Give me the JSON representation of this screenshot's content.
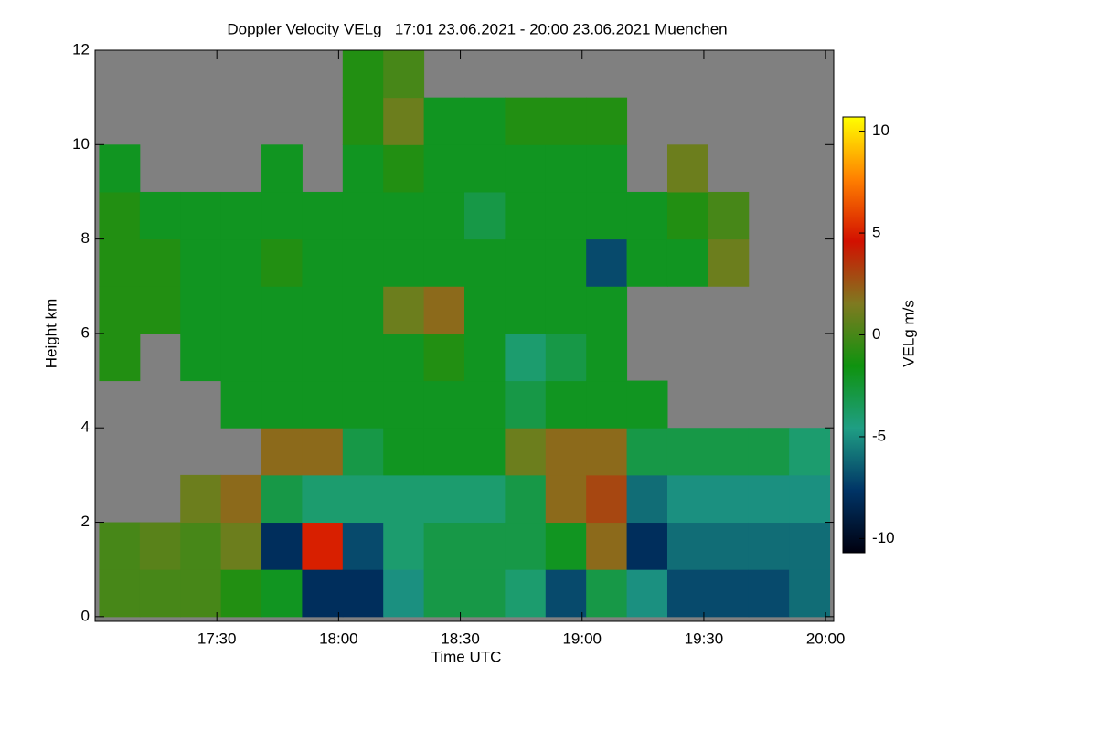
{
  "chart_data": {
    "type": "heatmap",
    "title": "Doppler Velocity VELg   17:01 23.06.2021 - 20:00 23.06.2021 Muenchen",
    "x_label": "Time UTC",
    "y_label": "Height km",
    "colorbar_label": "VELg m/s",
    "xlim": [
      1020,
      1202
    ],
    "xticks": [
      {
        "value": 1050,
        "label": "17:30"
      },
      {
        "value": 1080,
        "label": "18:00"
      },
      {
        "value": 1110,
        "label": "18:30"
      },
      {
        "value": 1140,
        "label": "19:00"
      },
      {
        "value": 1170,
        "label": "19:30"
      },
      {
        "value": 1200,
        "label": "20:00"
      }
    ],
    "ylim": [
      -0.1,
      12
    ],
    "yticks": [
      0,
      2,
      4,
      6,
      8,
      10,
      12
    ],
    "x_bins": [
      1021,
      1031,
      1041,
      1051,
      1061,
      1071,
      1081,
      1091,
      1101,
      1111,
      1121,
      1131,
      1141,
      1151,
      1161,
      1171,
      1181,
      1191,
      1201
    ],
    "y_bins": [
      0,
      1,
      2,
      3,
      4,
      5,
      6,
      7,
      8,
      9,
      10,
      11,
      12
    ],
    "values": [
      [
        0,
        0,
        null,
        null,
        null,
        -1,
        -1,
        -1,
        -1,
        -2,
        null,
        null
      ],
      [
        0,
        0.5,
        null,
        null,
        null,
        null,
        -1,
        -1,
        -2,
        null,
        null,
        null
      ],
      [
        0,
        0,
        1,
        null,
        null,
        -2,
        -2,
        -2,
        -2,
        null,
        null,
        null
      ],
      [
        -1,
        1,
        2,
        null,
        -2,
        -2,
        -2,
        -2,
        -2,
        null,
        null,
        null
      ],
      [
        -2,
        -8,
        -3,
        2,
        -2,
        -2,
        -2,
        -1,
        -2,
        -2,
        null,
        null
      ],
      [
        -8,
        5,
        -4,
        2,
        -2,
        -2,
        -2,
        -2,
        -2,
        null,
        null,
        null
      ],
      [
        -8,
        -7,
        -4,
        -3,
        -2,
        -2,
        -2,
        -2,
        -2,
        -2,
        -1,
        -1
      ],
      [
        -5,
        -4,
        -4,
        -2,
        -2,
        -2,
        1,
        -2,
        -2,
        -1,
        1,
        0
      ],
      [
        -3,
        -3,
        -4,
        -2,
        -2,
        -1,
        2,
        -2,
        -2,
        -2,
        -2,
        null
      ],
      [
        -3,
        -3,
        -4,
        -2,
        -2,
        -2,
        -2,
        -2,
        -3,
        -2,
        -2,
        null
      ],
      [
        -4,
        -3,
        -3,
        1,
        -3,
        -4,
        -2,
        -2,
        -2,
        -2,
        -1,
        null
      ],
      [
        -7,
        -2,
        2,
        2,
        -2,
        -3,
        -2,
        -2,
        -2,
        -2,
        -1,
        null
      ],
      [
        -3,
        2,
        3,
        2,
        -2,
        -2,
        -2,
        -7,
        -2,
        -2,
        -1,
        null
      ],
      [
        -5,
        -8,
        -6,
        -3,
        -2,
        null,
        null,
        -2,
        -2,
        null,
        null,
        null
      ],
      [
        -7,
        -6,
        -5,
        -3,
        null,
        null,
        null,
        -2,
        -1,
        1,
        null,
        null
      ],
      [
        -7,
        -6,
        -5,
        -3,
        null,
        null,
        null,
        1,
        0,
        null,
        null,
        null
      ],
      [
        -7,
        -6,
        -5,
        -3,
        null,
        null,
        null,
        null,
        null,
        null,
        null,
        null
      ],
      [
        -6,
        -6,
        -5,
        -4,
        null,
        null,
        null,
        null,
        null,
        null,
        null,
        null
      ]
    ],
    "missing_color": "#808080",
    "clim": [
      -10.7,
      10.7
    ],
    "cticks": [
      -10,
      -5,
      0,
      5,
      10
    ],
    "colormap": [
      "#00000f",
      "#003466",
      "#1f9e84",
      "#0f930f",
      "#7f7a20",
      "#d21000",
      "#ff8000",
      "#ffff00"
    ]
  }
}
